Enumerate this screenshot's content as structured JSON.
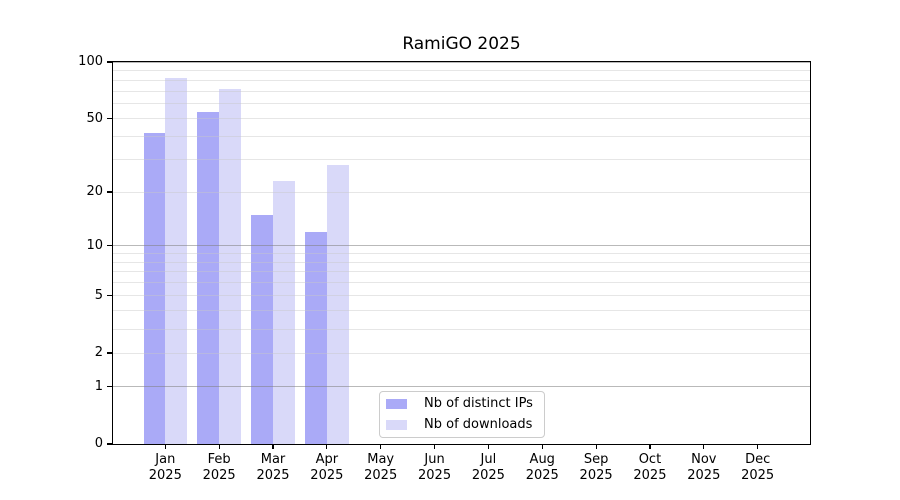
{
  "chart_data": {
    "type": "bar",
    "title": "RamiGO 2025",
    "categories": [
      "Jan",
      "Feb",
      "Mar",
      "Apr",
      "May",
      "Jun",
      "Jul",
      "Aug",
      "Sep",
      "Oct",
      "Nov",
      "Dec"
    ],
    "x_tick_second_line": "2025",
    "series": [
      {
        "name": "Nb of distinct IPs",
        "color": "#aaaaf7",
        "values": [
          42,
          54,
          15,
          12,
          0,
          0,
          0,
          0,
          0,
          0,
          0,
          0
        ]
      },
      {
        "name": "Nb of downloads",
        "color": "#d9d9f9",
        "values": [
          82,
          72,
          23,
          28,
          0,
          0,
          0,
          0,
          0,
          0,
          0,
          0
        ]
      }
    ],
    "yscale": "log1p",
    "ylim": [
      0,
      100
    ],
    "y_tick_labels": [
      0,
      1,
      2,
      5,
      10,
      20,
      50,
      100
    ],
    "major_gridlines": [
      1,
      10,
      100
    ],
    "minor_gridlines": [
      2,
      3,
      4,
      5,
      6,
      7,
      8,
      9,
      20,
      30,
      40,
      50,
      60,
      70,
      80,
      90
    ],
    "grid": true,
    "legend": {
      "position": "inside-lower-center",
      "entries": [
        "Nb of distinct IPs",
        "Nb of downloads"
      ]
    },
    "colors": {
      "bar_distinct_ips": "#aaaaf7",
      "bar_downloads": "#d9d9f9",
      "major_grid": "#b9b9b9",
      "minor_grid": "#e6e6e6",
      "axis": "#000000",
      "legend_border": "#cccccc",
      "background": "#ffffff"
    }
  }
}
